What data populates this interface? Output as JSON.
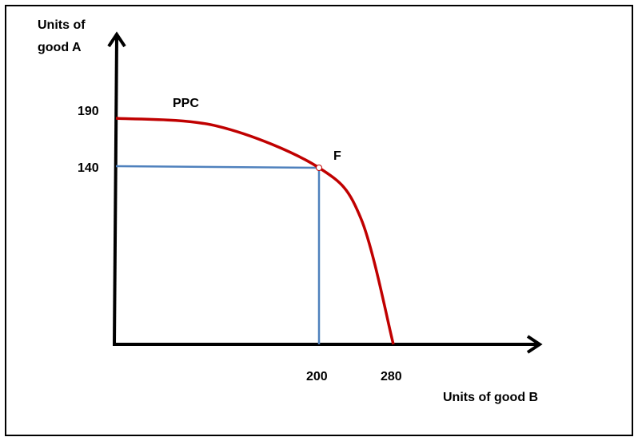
{
  "chart_data": {
    "type": "line",
    "ylabel_line1": "Units of",
    "ylabel_line2": "good A",
    "xlabel": "Units of good B",
    "curve_label": "PPC",
    "point_label": "F",
    "y_ticks": [
      "190",
      "140"
    ],
    "x_ticks": [
      "200",
      "280"
    ],
    "ppc": {
      "name": "PPC",
      "points": [
        {
          "x": 0,
          "y": 190
        },
        {
          "x": 100,
          "y": 182
        },
        {
          "x": 200,
          "y": 140
        },
        {
          "x": 245,
          "y": 100
        },
        {
          "x": 280,
          "y": 0
        }
      ]
    },
    "point_F": {
      "x": 200,
      "y": 140
    },
    "colors": {
      "ppc": "#c00000",
      "guides": "#4f81bd",
      "axes": "#000000",
      "frame": "#000000"
    },
    "grid": false
  }
}
